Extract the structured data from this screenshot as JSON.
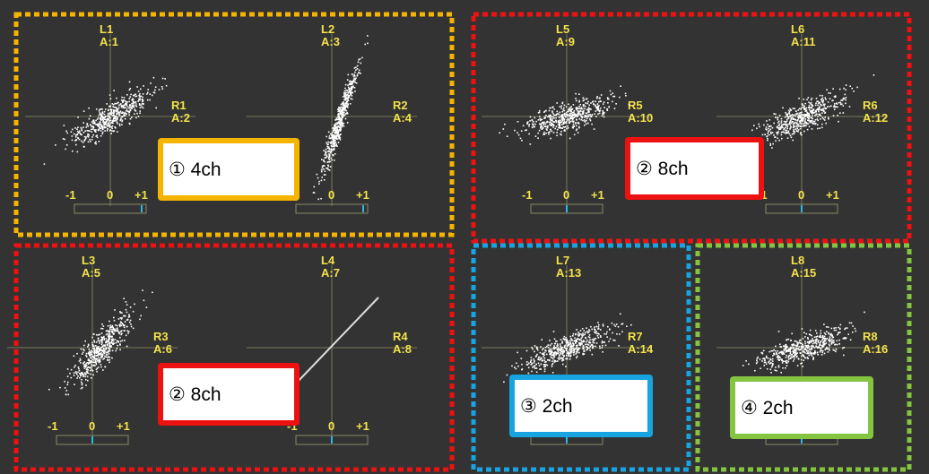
{
  "colors": {
    "background": "#333333",
    "label": "#f2e24a",
    "dots": "#ffffff",
    "needle": "#2fb7e6",
    "group_orange": "#f5b400",
    "group_red": "#ee1111",
    "group_blue": "#18a4e0",
    "group_green": "#85c441"
  },
  "meter_scale": {
    "min": "-1",
    "mid": "0",
    "max": "+1"
  },
  "cells": [
    {
      "id": "c1",
      "left": "L1",
      "left_ch": "A:1",
      "right": "R1",
      "right_ch": "A:2",
      "shape": "ellipse",
      "angle": -32,
      "needle": 1.0
    },
    {
      "id": "c2",
      "left": "L2",
      "left_ch": "A:3",
      "right": "R2",
      "right_ch": "A:4",
      "shape": "ellipse",
      "angle": -72,
      "needle": 1.0
    },
    {
      "id": "c3",
      "left": "L5",
      "left_ch": "A:9",
      "right": "R5",
      "right_ch": "A:10",
      "shape": "ellipse",
      "angle": -18,
      "needle": 0.0
    },
    {
      "id": "c4",
      "left": "L6",
      "left_ch": "A:11",
      "right": "R6",
      "right_ch": "A:12",
      "shape": "ellipse",
      "angle": -28,
      "needle": 0.0
    },
    {
      "id": "c5",
      "left": "L3",
      "left_ch": "A:5",
      "right": "R3",
      "right_ch": "A:6",
      "shape": "ellipse",
      "angle": -50,
      "needle": 0.0
    },
    {
      "id": "c6",
      "left": "L4",
      "left_ch": "A:7",
      "right": "R4",
      "right_ch": "A:8",
      "shape": "line",
      "angle": -45,
      "needle": 0.0
    },
    {
      "id": "c7",
      "left": "L7",
      "left_ch": "A:13",
      "right": "R7",
      "right_ch": "A:14",
      "shape": "ellipse",
      "angle": -22,
      "needle": 0.0
    },
    {
      "id": "c8",
      "left": "L8",
      "left_ch": "A:15",
      "right": "R8",
      "right_ch": "A:16",
      "shape": "ellipse",
      "angle": -18,
      "needle": 0.0
    }
  ],
  "groups": [
    {
      "id": "g1",
      "color": "orange",
      "label": "① 4ch"
    },
    {
      "id": "g2",
      "color": "red",
      "label": "② 8ch"
    },
    {
      "id": "g3",
      "color": "red",
      "label": "② 8ch"
    },
    {
      "id": "g4",
      "color": "blue",
      "label": "③ 2ch"
    },
    {
      "id": "g5",
      "color": "green",
      "label": "④ 2ch"
    }
  ]
}
